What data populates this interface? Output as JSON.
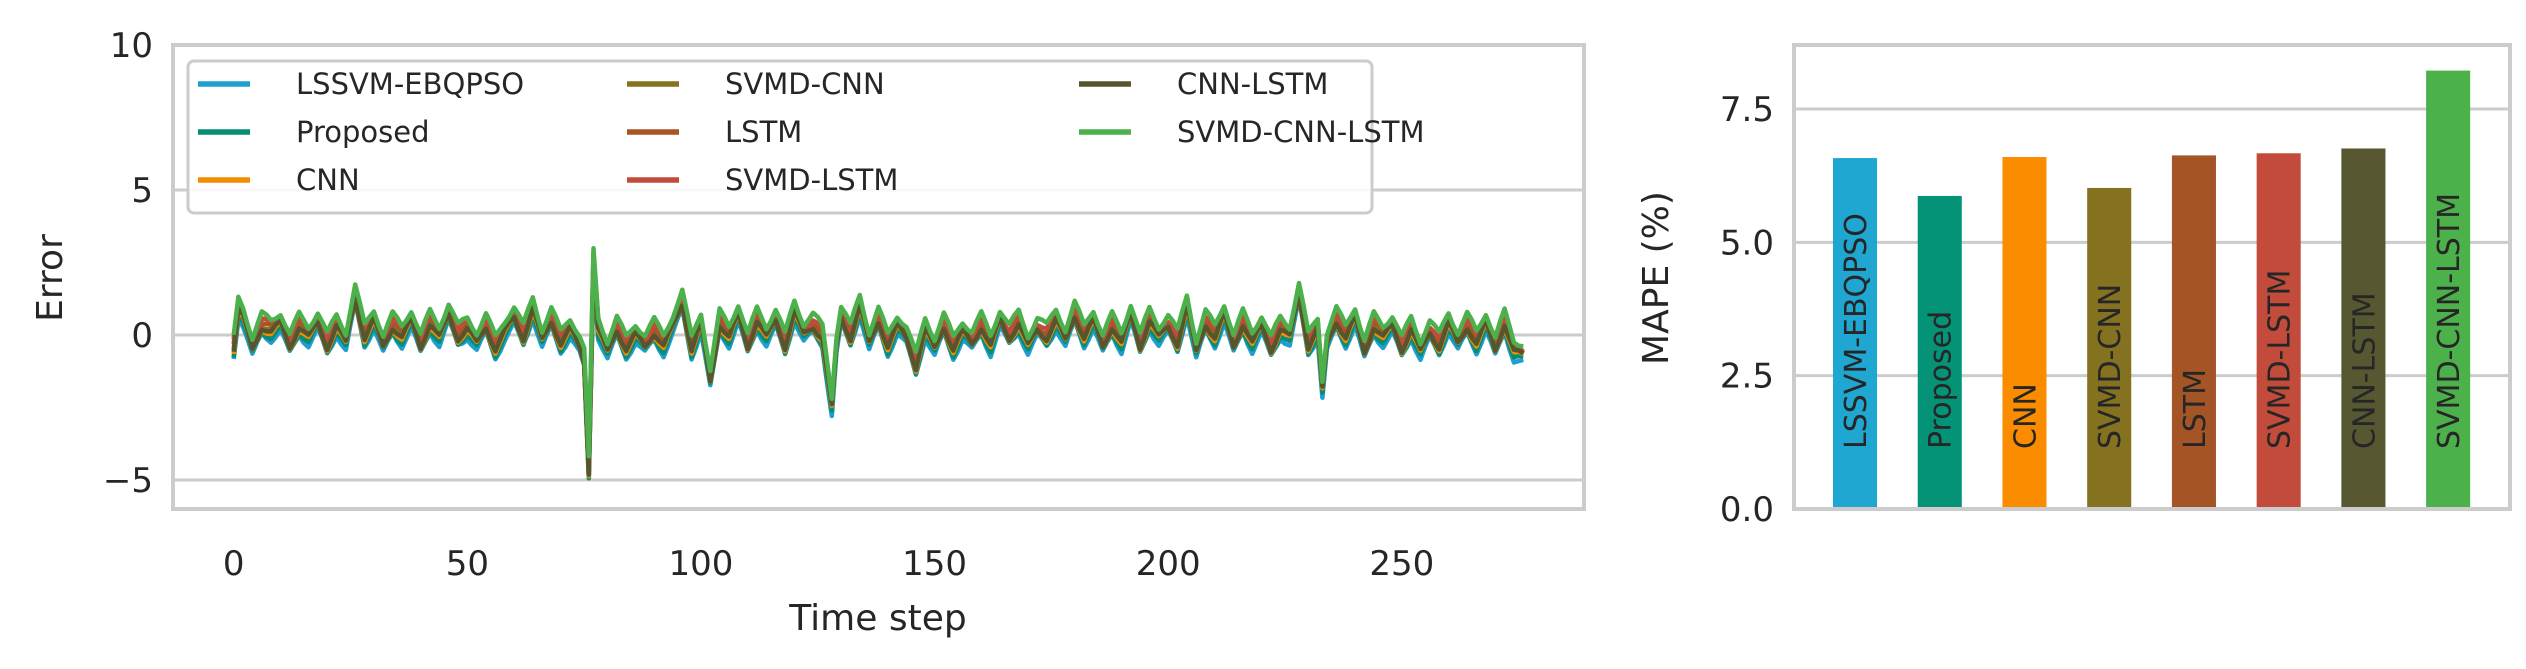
{
  "chart_data": [
    {
      "type": "line",
      "xlabel": "Time step",
      "ylabel": "Error",
      "xlim": [
        -13,
        289
      ],
      "ylim": [
        -6,
        10
      ],
      "xticks": [
        0,
        50,
        100,
        150,
        200,
        250
      ],
      "yticks": [
        10,
        5,
        0,
        -5
      ],
      "ytick_labels": [
        "10",
        "5",
        "0",
        "−5"
      ],
      "grid": "horizontal",
      "legend": {
        "position": "upper-left",
        "columns": 3
      },
      "n_points": 277,
      "base_series_keypoints": [
        [
          0,
          -0.4
        ],
        [
          1,
          1.0
        ],
        [
          2,
          0.7
        ],
        [
          4,
          -0.4
        ],
        [
          6,
          0.4
        ],
        [
          8,
          0.2
        ],
        [
          10,
          0.5
        ],
        [
          12,
          -0.3
        ],
        [
          14,
          0.4
        ],
        [
          16,
          0.0
        ],
        [
          18,
          0.5
        ],
        [
          20,
          -0.3
        ],
        [
          22,
          0.4
        ],
        [
          24,
          -0.2
        ],
        [
          26,
          1.4
        ],
        [
          28,
          0.0
        ],
        [
          30,
          0.6
        ],
        [
          32,
          -0.3
        ],
        [
          34,
          0.4
        ],
        [
          36,
          0.0
        ],
        [
          38,
          0.6
        ],
        [
          40,
          -0.3
        ],
        [
          42,
          0.5
        ],
        [
          44,
          0.0
        ],
        [
          46,
          0.8
        ],
        [
          48,
          0.0
        ],
        [
          50,
          0.3
        ],
        [
          52,
          -0.2
        ],
        [
          54,
          0.4
        ],
        [
          56,
          -0.4
        ],
        [
          58,
          0.2
        ],
        [
          60,
          0.7
        ],
        [
          62,
          0.0
        ],
        [
          64,
          1.0
        ],
        [
          66,
          -0.1
        ],
        [
          68,
          0.6
        ],
        [
          70,
          -0.2
        ],
        [
          72,
          0.3
        ],
        [
          74,
          -0.3
        ],
        [
          75,
          -0.8
        ],
        [
          76,
          -4.6
        ],
        [
          77,
          2.6
        ],
        [
          78,
          0.3
        ],
        [
          80,
          -0.5
        ],
        [
          82,
          0.3
        ],
        [
          84,
          -0.4
        ],
        [
          86,
          0.1
        ],
        [
          88,
          -0.3
        ],
        [
          90,
          0.2
        ],
        [
          92,
          -0.3
        ],
        [
          94,
          0.4
        ],
        [
          96,
          1.2
        ],
        [
          98,
          -0.4
        ],
        [
          100,
          0.5
        ],
        [
          102,
          -1.5
        ],
        [
          104,
          0.5
        ],
        [
          106,
          0.0
        ],
        [
          108,
          0.8
        ],
        [
          110,
          -0.3
        ],
        [
          112,
          0.6
        ],
        [
          114,
          0.0
        ],
        [
          116,
          0.6
        ],
        [
          118,
          -0.3
        ],
        [
          120,
          0.9
        ],
        [
          122,
          0.1
        ],
        [
          124,
          0.4
        ],
        [
          126,
          0.0
        ],
        [
          127,
          -1.2
        ],
        [
          128,
          -2.4
        ],
        [
          129,
          -0.3
        ],
        [
          130,
          0.7
        ],
        [
          132,
          0.0
        ],
        [
          134,
          1.1
        ],
        [
          136,
          -0.2
        ],
        [
          138,
          0.6
        ],
        [
          140,
          -0.3
        ],
        [
          142,
          0.4
        ],
        [
          144,
          0.0
        ],
        [
          146,
          -1.0
        ],
        [
          148,
          0.3
        ],
        [
          150,
          -0.4
        ],
        [
          152,
          0.4
        ],
        [
          154,
          -0.4
        ],
        [
          156,
          0.2
        ],
        [
          158,
          -0.2
        ],
        [
          160,
          0.4
        ],
        [
          162,
          -0.3
        ],
        [
          164,
          0.6
        ],
        [
          166,
          0.0
        ],
        [
          168,
          0.5
        ],
        [
          170,
          -0.3
        ],
        [
          172,
          0.3
        ],
        [
          174,
          0.0
        ],
        [
          176,
          0.6
        ],
        [
          178,
          -0.1
        ],
        [
          180,
          0.8
        ],
        [
          182,
          0.0
        ],
        [
          184,
          0.6
        ],
        [
          186,
          -0.3
        ],
        [
          188,
          0.4
        ],
        [
          190,
          -0.2
        ],
        [
          192,
          0.8
        ],
        [
          194,
          -0.3
        ],
        [
          196,
          0.6
        ],
        [
          198,
          0.0
        ],
        [
          200,
          0.4
        ],
        [
          202,
          -0.2
        ],
        [
          204,
          1.1
        ],
        [
          206,
          -0.5
        ],
        [
          208,
          0.5
        ],
        [
          210,
          0.0
        ],
        [
          212,
          0.8
        ],
        [
          214,
          -0.3
        ],
        [
          216,
          0.5
        ],
        [
          218,
          -0.2
        ],
        [
          220,
          0.4
        ],
        [
          222,
          -0.4
        ],
        [
          224,
          0.3
        ],
        [
          226,
          0.0
        ],
        [
          228,
          1.5
        ],
        [
          230,
          -0.3
        ],
        [
          232,
          0.3
        ],
        [
          233,
          -1.8
        ],
        [
          234,
          -0.2
        ],
        [
          236,
          0.6
        ],
        [
          238,
          0.0
        ],
        [
          240,
          0.7
        ],
        [
          242,
          -0.5
        ],
        [
          244,
          0.4
        ],
        [
          246,
          0.0
        ],
        [
          248,
          0.4
        ],
        [
          250,
          -0.4
        ],
        [
          252,
          0.3
        ],
        [
          254,
          -0.5
        ],
        [
          256,
          0.2
        ],
        [
          258,
          -0.3
        ],
        [
          260,
          0.5
        ],
        [
          262,
          -0.2
        ],
        [
          264,
          0.4
        ],
        [
          266,
          -0.2
        ],
        [
          268,
          0.5
        ],
        [
          270,
          -0.4
        ],
        [
          272,
          0.5
        ],
        [
          274,
          -0.5
        ],
        [
          276,
          -0.6
        ]
      ],
      "series": [
        {
          "name": "LSSVM-EBQPSO",
          "color": "#1f9fcf",
          "offset": -0.35
        },
        {
          "name": "Proposed",
          "color": "#088c74",
          "offset": -0.25
        },
        {
          "name": "CNN",
          "color": "#f28c00",
          "offset": -0.15
        },
        {
          "name": "SVMD-CNN",
          "color": "#857320",
          "offset": -0.05
        },
        {
          "name": "LSTM",
          "color": "#a85425",
          "offset": 0.05
        },
        {
          "name": "SVMD-LSTM",
          "color": "#c24b3b",
          "offset": 0.15
        },
        {
          "name": "CNN-LSTM",
          "color": "#56552e",
          "offset": -0.1
        },
        {
          "name": "SVMD-CNN-LSTM",
          "color": "#4cb04b",
          "offset": 0.3
        }
      ]
    },
    {
      "type": "bar",
      "xlabel": "",
      "ylabel": "MAPE (%)",
      "ylim": [
        0,
        8.7
      ],
      "yticks": [
        0.0,
        2.5,
        5.0,
        7.5
      ],
      "ytick_labels": [
        "0.0",
        "2.5",
        "5.0",
        "7.5"
      ],
      "grid": "horizontal",
      "categories": [
        "LSSVM-EBQPSO",
        "Proposed",
        "CNN",
        "SVMD-CNN",
        "LSTM",
        "SVMD-LSTM",
        "CNN-LSTM",
        "SVMD-CNN-LSTM"
      ],
      "values": [
        6.58,
        5.87,
        6.6,
        6.02,
        6.63,
        6.67,
        6.76,
        8.22
      ],
      "colors": [
        "#1fa6d1",
        "#049377",
        "#fb8c00",
        "#847221",
        "#a55426",
        "#c24b3b",
        "#575731",
        "#4cb04b"
      ]
    }
  ]
}
